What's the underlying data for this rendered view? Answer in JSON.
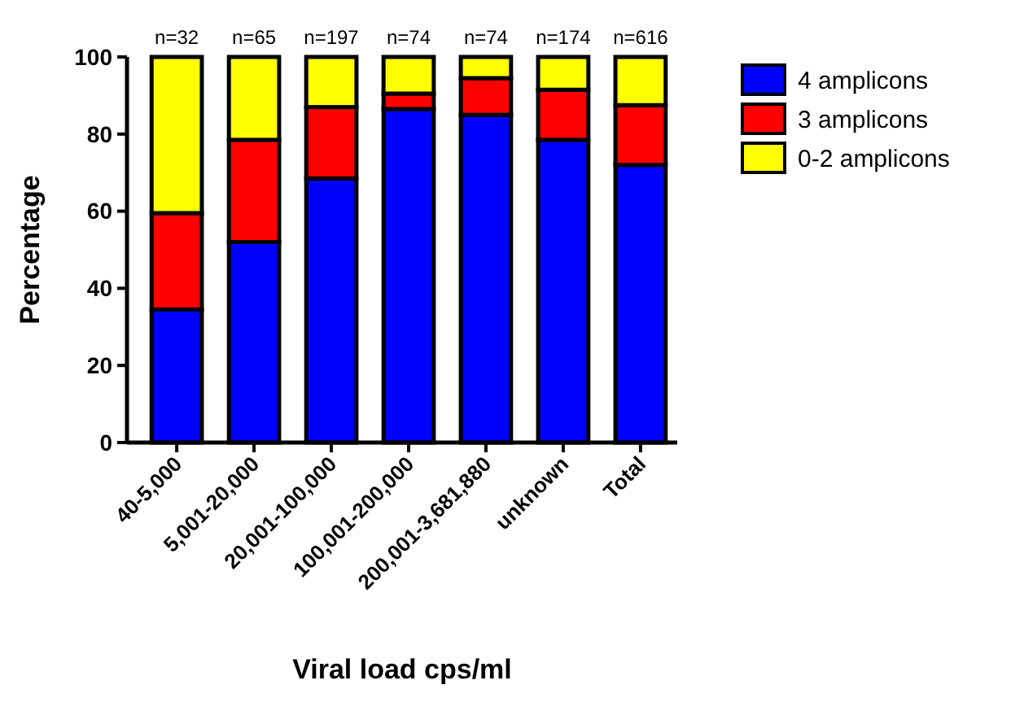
{
  "chart_data": {
    "type": "bar",
    "stacked": true,
    "xlabel": "Viral load cps/ml",
    "ylabel": "Percentage",
    "categories": [
      "40-5,000",
      "5,001-20,000",
      "20,001-100,000",
      "100,001-200,000",
      "200,001-3,681,880",
      "unknown",
      "Total"
    ],
    "series": [
      {
        "name": "4 amplicons",
        "color": "#0000ff",
        "values": [
          34.5,
          52,
          68.5,
          86.5,
          85,
          78.5,
          72
        ]
      },
      {
        "name": "3 amplicons",
        "color": "#ff0000",
        "values": [
          25,
          26.5,
          18.5,
          4,
          9.5,
          13,
          15.5
        ]
      },
      {
        "name": "0-2 amplicons",
        "color": "#ffff00",
        "values": [
          40.5,
          21.5,
          13,
          9.5,
          5.5,
          8.5,
          12.5
        ]
      }
    ],
    "ylim": [
      0,
      100
    ],
    "yticks": [
      0,
      20,
      40,
      60,
      80,
      100
    ],
    "grid": false,
    "legend": "top right",
    "annotations": [
      {
        "text": "n=32",
        "x": "40-5,000",
        "y": 100
      },
      {
        "text": "n=65",
        "x": "5,001-20,000",
        "y": 100
      },
      {
        "text": "n=197",
        "x": "20,001-100,000",
        "y": 100
      },
      {
        "text": "n=74",
        "x": "100,001-200,000",
        "y": 100
      },
      {
        "text": "n=74",
        "x": "200,001-3,681,880",
        "y": 100
      },
      {
        "text": "n=174",
        "x": "unknown",
        "y": 100
      },
      {
        "text": "n=616",
        "x": "Total",
        "y": 100
      }
    ]
  }
}
